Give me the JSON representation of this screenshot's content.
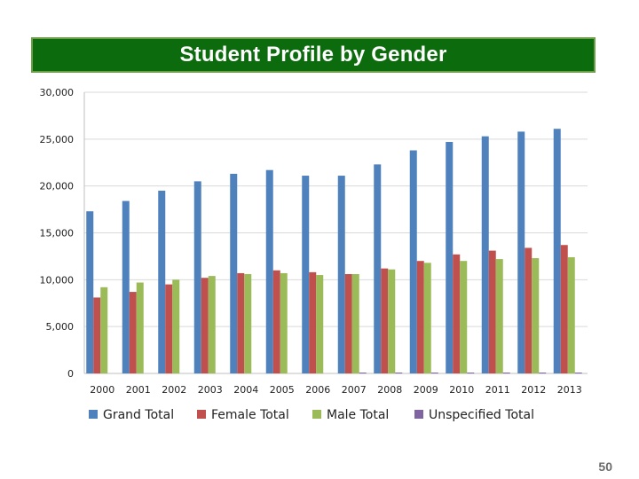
{
  "slide": {
    "title": "Student Profile by Gender",
    "page_number": "50"
  },
  "chart_data": {
    "type": "bar",
    "title": "",
    "xlabel": "",
    "ylabel": "",
    "ylim": [
      0,
      30000
    ],
    "yticks": [
      0,
      5000,
      10000,
      15000,
      20000,
      25000,
      30000
    ],
    "ytick_labels": [
      "0",
      "5,000",
      "10,000",
      "15,000",
      "20,000",
      "25,000",
      "30,000"
    ],
    "grid": true,
    "legend_position": "bottom",
    "categories": [
      "2000",
      "2001",
      "2002",
      "2003",
      "2004",
      "2005",
      "2006",
      "2007",
      "2008",
      "2009",
      "2010",
      "2011",
      "2012",
      "2013"
    ],
    "series": [
      {
        "name": "Grand Total",
        "color": "#4f81bd",
        "values": [
          17300,
          18400,
          19500,
          20500,
          21300,
          21700,
          21100,
          21100,
          22300,
          23800,
          24700,
          25300,
          25800,
          26100
        ]
      },
      {
        "name": "Female Total",
        "color": "#c0504d",
        "values": [
          8100,
          8700,
          9500,
          10200,
          10700,
          11000,
          10800,
          10600,
          11200,
          12000,
          12700,
          13100,
          13400,
          13700
        ]
      },
      {
        "name": "Male Total",
        "color": "#9bbb59",
        "values": [
          9200,
          9700,
          10000,
          10400,
          10600,
          10700,
          10500,
          10600,
          11100,
          11800,
          12000,
          12200,
          12300,
          12400
        ]
      },
      {
        "name": "Unspecified Total",
        "color": "#8064a2",
        "values": [
          0,
          0,
          0,
          0,
          0,
          0,
          0,
          50,
          50,
          60,
          60,
          70,
          80,
          90
        ]
      }
    ]
  }
}
